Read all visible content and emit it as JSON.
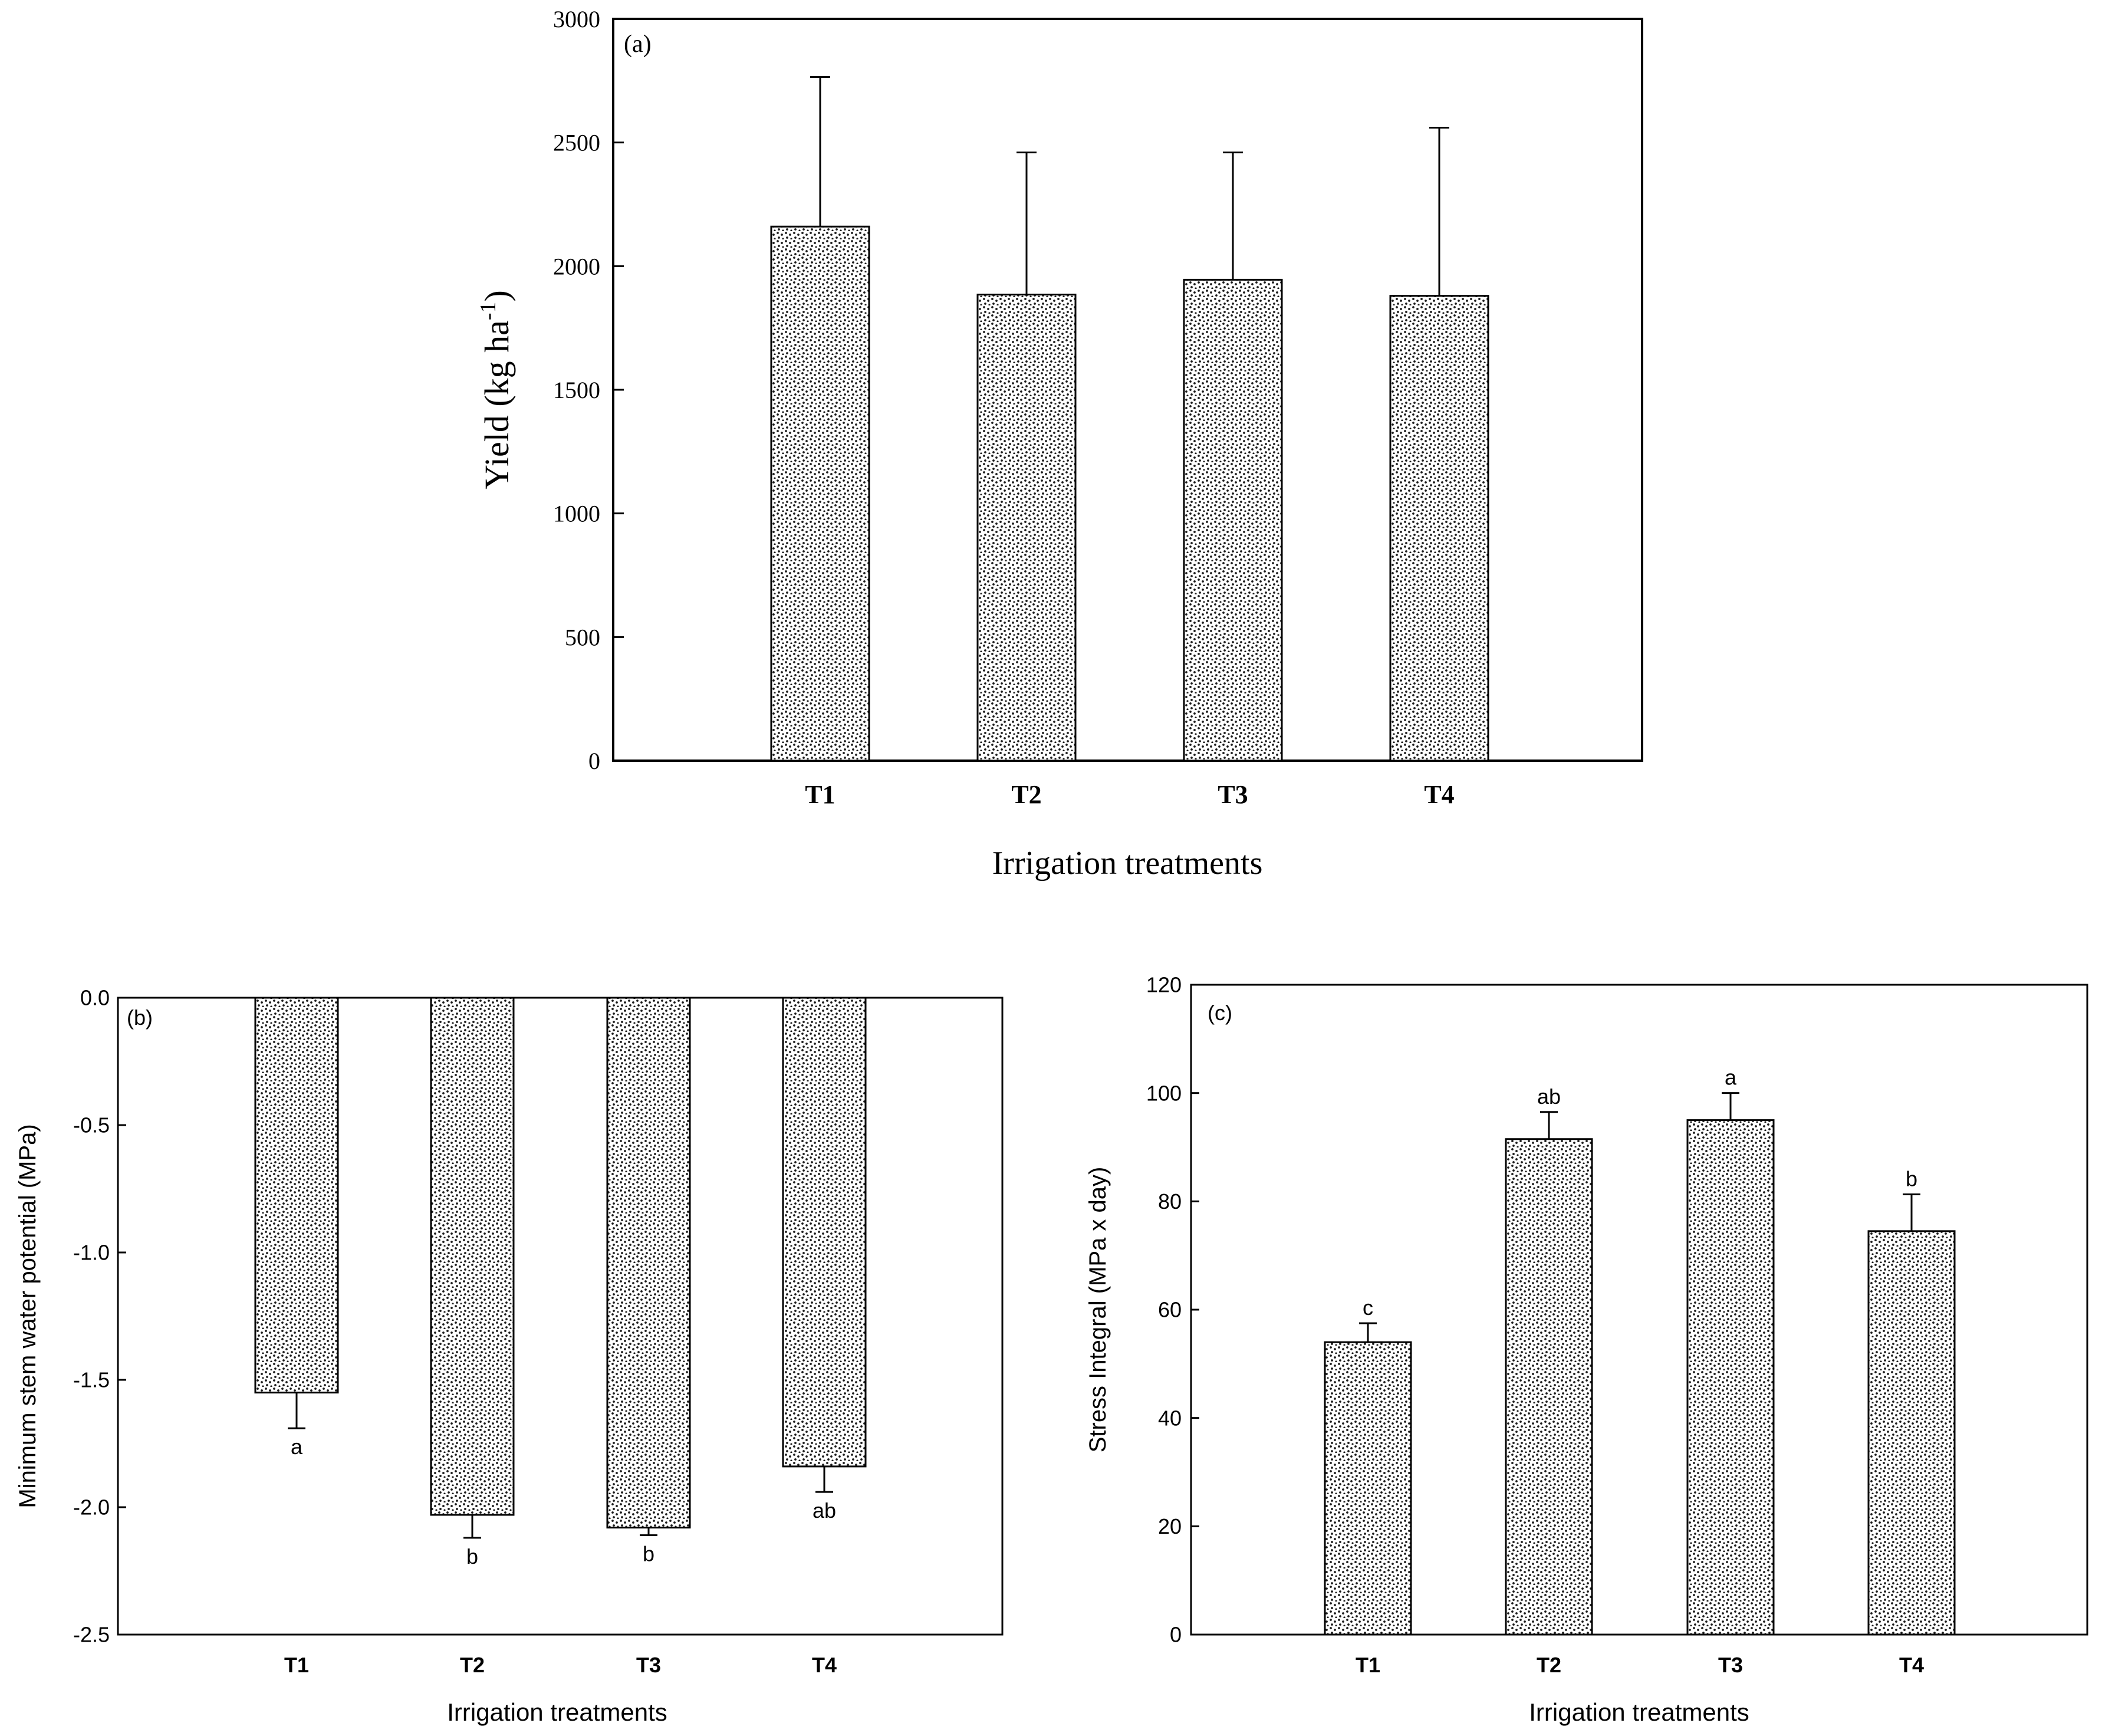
{
  "chart_data": [
    {
      "id": "a",
      "type": "bar",
      "panel_label": "(a)",
      "title": "",
      "categories": [
        "T1",
        "T2",
        "T3",
        "T4"
      ],
      "values": [
        2160,
        1885,
        1945,
        1880
      ],
      "errors": [
        605,
        575,
        515,
        680
      ],
      "significance": [
        "",
        "",
        "",
        ""
      ],
      "xlabel": "Irrigation treatments",
      "ylabel_main": "Yield (kg ha",
      "ylabel_sup": "-1",
      "ylabel_end": ")",
      "ylim": [
        0,
        3000
      ],
      "yticks": [
        "0",
        "500",
        "1000",
        "1500",
        "2000",
        "2500",
        "3000"
      ],
      "grid": false
    },
    {
      "id": "b",
      "type": "bar",
      "panel_label": "(b)",
      "title": "",
      "categories": [
        "T1",
        "T2",
        "T3",
        "T4"
      ],
      "values": [
        -1.55,
        -2.03,
        -2.08,
        -1.84
      ],
      "errors": [
        0.14,
        0.09,
        0.03,
        0.1
      ],
      "significance": [
        "a",
        "b",
        "b",
        "ab"
      ],
      "xlabel": "Irrigation treatments",
      "ylabel": "Minimum stem water potential (MPa)",
      "ylim": [
        -2.5,
        0
      ],
      "yticks": [
        "0.0",
        "-0.5",
        "-1.0",
        "-1.5",
        "-2.0",
        "-2.5"
      ],
      "grid": false
    },
    {
      "id": "c",
      "type": "bar",
      "panel_label": "(c)",
      "title": "",
      "categories": [
        "T1",
        "T2",
        "T3",
        "T4"
      ],
      "values": [
        54,
        91.5,
        95,
        74.5
      ],
      "errors": [
        3.5,
        5,
        5,
        6.8
      ],
      "significance": [
        "c",
        "ab",
        "a",
        "b"
      ],
      "xlabel": "Irrigation treatments",
      "ylabel": "Stress Integral (MPa x day)",
      "ylim": [
        0,
        120
      ],
      "yticks": [
        "0",
        "20",
        "40",
        "60",
        "80",
        "100",
        "120"
      ],
      "grid": false
    }
  ],
  "colors": {
    "bar_fill_base": "#ffffff",
    "stipple": "#1a1a1a",
    "axis": "#000000"
  }
}
